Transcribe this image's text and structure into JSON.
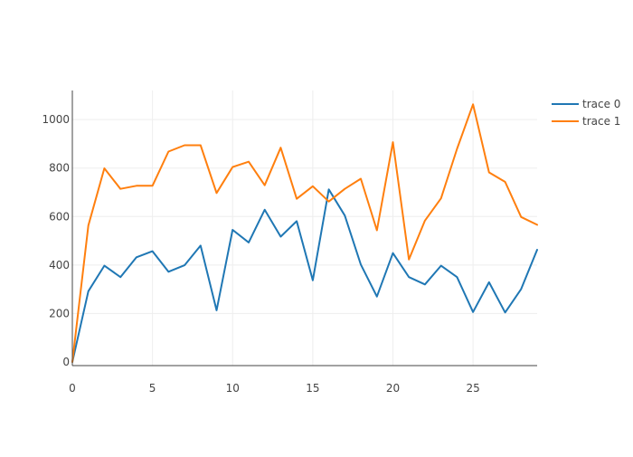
{
  "chart_data": {
    "type": "line",
    "title": "",
    "xlabel": "",
    "ylabel": "",
    "xlim": [
      0,
      29
    ],
    "ylim": [
      -15,
      1120
    ],
    "x_ticks": [
      0,
      5,
      10,
      15,
      20,
      25
    ],
    "y_ticks": [
      0,
      200,
      400,
      600,
      800,
      1000
    ],
    "x_tick_labels": [
      "0",
      "5",
      "10",
      "15",
      "20",
      "25"
    ],
    "y_tick_labels": [
      "0",
      "200",
      "400",
      "600",
      "800",
      "1000"
    ],
    "grid": true,
    "legend_position": "top-right",
    "x": [
      0,
      1,
      2,
      3,
      4,
      5,
      6,
      7,
      8,
      9,
      10,
      11,
      12,
      13,
      14,
      15,
      16,
      17,
      18,
      19,
      20,
      21,
      22,
      23,
      24,
      25,
      26,
      27,
      28,
      29
    ],
    "series": [
      {
        "name": "trace 0",
        "color": "#1f77b4",
        "values": [
          0,
          292,
          397,
          350,
          432,
          457,
          372,
          399,
          480,
          213,
          545,
          493,
          628,
          517,
          581,
          337,
          712,
          604,
          402,
          270,
          449,
          350,
          320,
          397,
          350,
          206,
          329,
          204,
          301,
          463
        ]
      },
      {
        "name": "trace 1",
        "color": "#ff7f0e",
        "values": [
          0,
          563,
          799,
          714,
          727,
          727,
          868,
          894,
          894,
          697,
          804,
          826,
          729,
          884,
          673,
          725,
          662,
          714,
          756,
          543,
          907,
          423,
          583,
          675,
          879,
          1063,
          782,
          743,
          598,
          566
        ]
      }
    ]
  }
}
